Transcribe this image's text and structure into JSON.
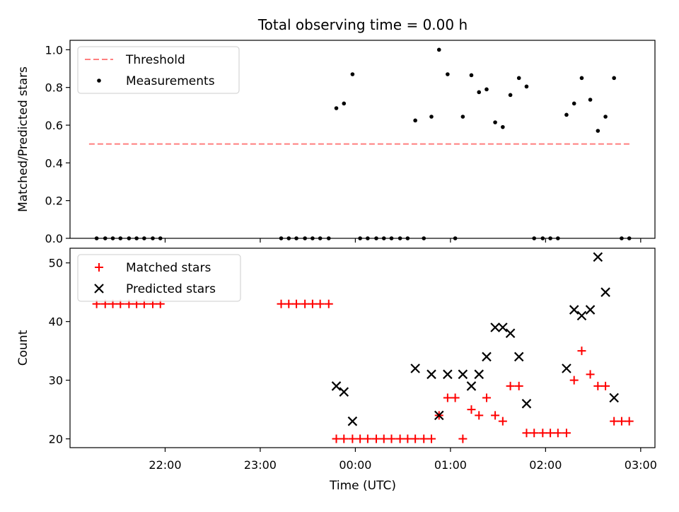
{
  "chart_data": {
    "title": "Total observing time = 0.00 h",
    "xlabel": "Time (UTC)",
    "x_ticks": [
      "22:00",
      "23:00",
      "00:00",
      "01:00",
      "02:00",
      "03:00"
    ],
    "x_tick_hours": [
      22,
      23,
      24,
      25,
      26,
      27
    ],
    "xlim": [
      21.0,
      27.15
    ],
    "panels": [
      {
        "type": "scatter",
        "ylabel": "Matched/Predicted stars",
        "ylim": [
          0,
          1.05
        ],
        "y_ticks": [
          "0.0",
          "0.2",
          "0.4",
          "0.6",
          "0.8",
          "1.0"
        ],
        "y_tick_values": [
          0,
          0.2,
          0.4,
          0.6,
          0.8,
          1.0
        ],
        "legend_position": "upper-left",
        "threshold": {
          "name": "Threshold",
          "y": 0.5,
          "x": [
            21.2,
            26.9
          ],
          "color": "#ff7f7f"
        },
        "series": [
          {
            "name": "Measurements",
            "color": "#000000",
            "x": [
              21.28,
              21.37,
              21.45,
              21.53,
              21.62,
              21.7,
              21.78,
              21.87,
              21.95,
              23.22,
              23.3,
              23.38,
              23.47,
              23.55,
              23.63,
              23.72,
              23.8,
              23.88,
              23.97,
              24.05,
              24.13,
              24.22,
              24.3,
              24.38,
              24.47,
              24.55,
              24.63,
              24.72,
              24.8,
              24.88,
              24.97,
              25.05,
              25.13,
              25.22,
              25.3,
              25.38,
              25.47,
              25.55,
              25.63,
              25.72,
              25.8,
              25.88,
              25.97,
              26.05,
              26.13,
              26.22,
              26.3,
              26.38,
              26.47,
              26.55,
              26.63,
              26.72,
              26.8,
              26.88
            ],
            "y": [
              0,
              0,
              0,
              0,
              0,
              0,
              0,
              0,
              0,
              0,
              0,
              0,
              0,
              0,
              0,
              0,
              0.69,
              0.715,
              0.87,
              0,
              0,
              0,
              0,
              0,
              0,
              0,
              0.625,
              0,
              0.645,
              1.0,
              0.87,
              0,
              0.645,
              0.865,
              0.775,
              0.79,
              0.615,
              0.59,
              0.76,
              0.85,
              0.805,
              0,
              0,
              0,
              0,
              0.655,
              0.715,
              0.85,
              0.735,
              0.57,
              0.645,
              0.85,
              0,
              0
            ]
          }
        ]
      },
      {
        "type": "scatter",
        "ylabel": "Count",
        "ylim": [
          18.5,
          52.5
        ],
        "y_ticks": [
          "20",
          "30",
          "40",
          "50"
        ],
        "y_tick_values": [
          20,
          30,
          40,
          50
        ],
        "legend_position": "upper-left",
        "series": [
          {
            "name": "Matched stars",
            "color": "#ff0000",
            "marker": "+",
            "x": [
              21.28,
              21.37,
              21.45,
              21.53,
              21.62,
              21.7,
              21.78,
              21.87,
              21.95,
              23.22,
              23.3,
              23.38,
              23.47,
              23.55,
              23.63,
              23.72,
              23.8,
              23.88,
              23.97,
              24.05,
              24.13,
              24.22,
              24.3,
              24.38,
              24.47,
              24.55,
              24.63,
              24.72,
              24.8,
              24.88,
              24.97,
              25.05,
              25.13,
              25.22,
              25.3,
              25.38,
              25.47,
              25.55,
              25.63,
              25.72,
              25.8,
              25.88,
              25.97,
              26.05,
              26.13,
              26.22,
              26.3,
              26.38,
              26.47,
              26.55,
              26.63,
              26.72,
              26.8,
              26.88
            ],
            "y": [
              43,
              43,
              43,
              43,
              43,
              43,
              43,
              43,
              43,
              43,
              43,
              43,
              43,
              43,
              43,
              43,
              20,
              20,
              20,
              20,
              20,
              20,
              20,
              20,
              20,
              20,
              20,
              20,
              20,
              24,
              27,
              27,
              20,
              25,
              24,
              27,
              24,
              23,
              29,
              29,
              21,
              21,
              21,
              21,
              21,
              21,
              30,
              35,
              31,
              29,
              29,
              23,
              23,
              23
            ]
          },
          {
            "name": "Predicted stars",
            "color": "#000000",
            "marker": "x",
            "x": [
              23.8,
              23.88,
              23.97,
              24.63,
              24.8,
              24.88,
              24.97,
              25.13,
              25.22,
              25.3,
              25.38,
              25.47,
              25.55,
              25.63,
              25.72,
              25.8,
              26.22,
              26.3,
              26.38,
              26.47,
              26.55,
              26.63,
              26.72
            ],
            "y": [
              29,
              28,
              23,
              32,
              31,
              24,
              31,
              31,
              29,
              31,
              34,
              39,
              39,
              38,
              34,
              26,
              32,
              42,
              41,
              42,
              51,
              45,
              27
            ]
          }
        ]
      }
    ]
  }
}
